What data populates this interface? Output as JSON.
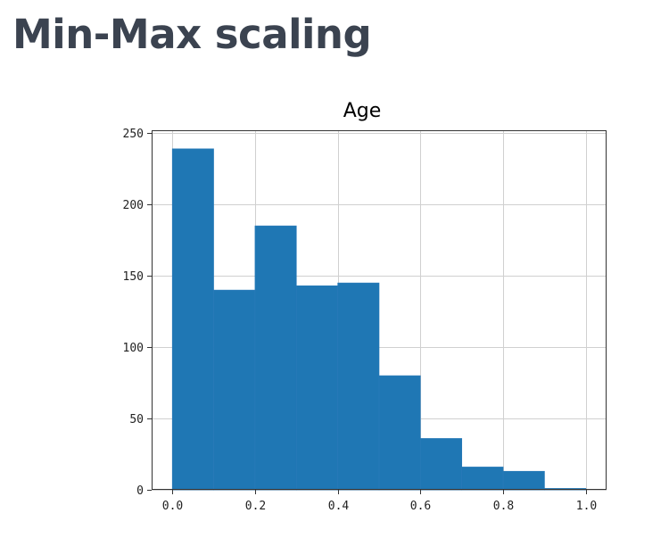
{
  "page": {
    "title": "Min-Max scaling"
  },
  "colors": {
    "title_text": "#3b4350",
    "bar_fill": "#1f77b4",
    "grid": "#d0d0d0",
    "axis": "#333333"
  },
  "chart_data": {
    "type": "bar",
    "title": "Age",
    "xlabel": "",
    "ylabel": "",
    "bins": [
      {
        "x0": 0.0,
        "x1": 0.1,
        "count": 239
      },
      {
        "x0": 0.1,
        "x1": 0.2,
        "count": 140
      },
      {
        "x0": 0.2,
        "x1": 0.3,
        "count": 185
      },
      {
        "x0": 0.3,
        "x1": 0.4,
        "count": 143
      },
      {
        "x0": 0.4,
        "x1": 0.5,
        "count": 145
      },
      {
        "x0": 0.5,
        "x1": 0.6,
        "count": 80
      },
      {
        "x0": 0.6,
        "x1": 0.7,
        "count": 36
      },
      {
        "x0": 0.7,
        "x1": 0.8,
        "count": 16
      },
      {
        "x0": 0.8,
        "x1": 0.9,
        "count": 13
      },
      {
        "x0": 0.9,
        "x1": 1.0,
        "count": 1
      }
    ],
    "xlim": [
      -0.05,
      1.05
    ],
    "ylim": [
      0,
      252
    ],
    "xticks": [
      0.0,
      0.2,
      0.4,
      0.6,
      0.8,
      1.0
    ],
    "xtick_labels": [
      "0.0",
      "0.2",
      "0.4",
      "0.6",
      "0.8",
      "1.0"
    ],
    "yticks": [
      0,
      50,
      100,
      150,
      200,
      250
    ],
    "ytick_labels": [
      "0",
      "50",
      "100",
      "150",
      "200",
      "250"
    ],
    "grid": true,
    "legend": "none"
  }
}
